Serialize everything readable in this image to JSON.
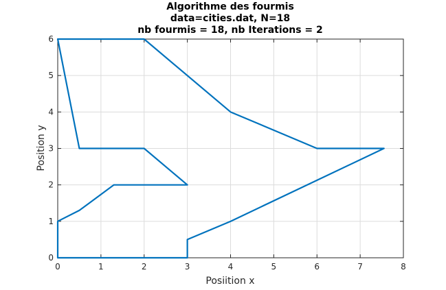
{
  "chart_data": {
    "type": "line",
    "title_lines": [
      "Algorithme des fourmis",
      "data=cities.dat, N=18",
      "nb fourmis = 18, nb Iterations = 2"
    ],
    "xlabel": "Posiition x",
    "ylabel": "Position y",
    "xlim": [
      0,
      8
    ],
    "ylim": [
      0,
      6
    ],
    "xticks": [
      0,
      1,
      2,
      3,
      4,
      5,
      6,
      7,
      8
    ],
    "yticks": [
      0,
      1,
      2,
      3,
      4,
      5,
      6
    ],
    "grid": true,
    "series": [
      {
        "color": "#0072BD",
        "x": [
          0,
          3,
          3,
          4,
          7.55,
          6,
          4,
          2,
          0,
          0.5,
          2,
          3,
          1.3,
          0.5,
          0,
          0
        ],
        "y": [
          0,
          0,
          0.5,
          1,
          3,
          3,
          4,
          6,
          6,
          3,
          3,
          2,
          2,
          1.3,
          1,
          0
        ]
      }
    ]
  }
}
